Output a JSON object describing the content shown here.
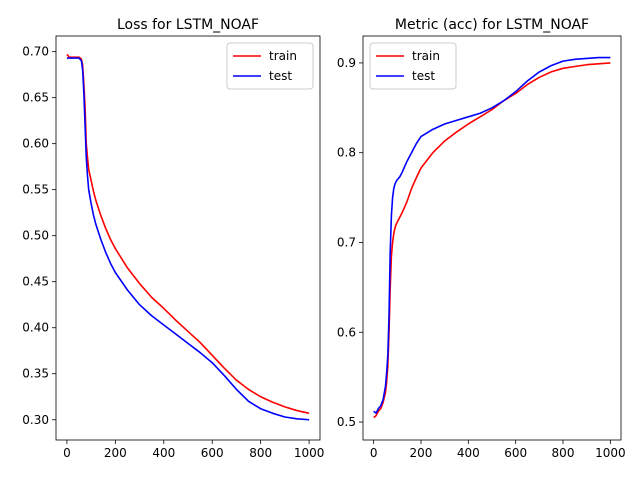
{
  "chart_data": [
    {
      "type": "line",
      "title": "Loss for LSTM_NOAF",
      "xlabel": "",
      "ylabel": "",
      "xlim": [
        -45,
        1045
      ],
      "ylim": [
        0.278,
        0.717
      ],
      "xticks": [
        0,
        200,
        400,
        600,
        800,
        1000
      ],
      "yticks": [
        0.3,
        0.35,
        0.4,
        0.45,
        0.5,
        0.55,
        0.6,
        0.65,
        0.7
      ],
      "ytick_labels": [
        "0.30",
        "0.35",
        "0.40",
        "0.45",
        "0.50",
        "0.55",
        "0.60",
        "0.65",
        "0.70"
      ],
      "grid": false,
      "legend": "upper-right",
      "series": [
        {
          "name": "train",
          "color": "#ff0000",
          "x": [
            0,
            10,
            30,
            50,
            60,
            65,
            70,
            75,
            80,
            85,
            90,
            100,
            110,
            120,
            140,
            160,
            180,
            200,
            250,
            300,
            350,
            400,
            450,
            500,
            550,
            600,
            650,
            700,
            750,
            800,
            850,
            900,
            950,
            1000
          ],
          "y": [
            0.697,
            0.694,
            0.694,
            0.694,
            0.692,
            0.685,
            0.665,
            0.64,
            0.6,
            0.585,
            0.572,
            0.56,
            0.548,
            0.538,
            0.522,
            0.508,
            0.496,
            0.486,
            0.465,
            0.448,
            0.433,
            0.421,
            0.408,
            0.396,
            0.384,
            0.37,
            0.356,
            0.343,
            0.333,
            0.325,
            0.319,
            0.314,
            0.31,
            0.307
          ]
        },
        {
          "name": "test",
          "color": "#0000ff",
          "x": [
            0,
            10,
            30,
            50,
            60,
            65,
            70,
            75,
            80,
            85,
            90,
            100,
            110,
            120,
            140,
            160,
            180,
            200,
            250,
            300,
            350,
            400,
            450,
            500,
            550,
            600,
            650,
            700,
            750,
            800,
            850,
            900,
            950,
            1000
          ],
          "y": [
            0.693,
            0.693,
            0.693,
            0.693,
            0.69,
            0.68,
            0.655,
            0.62,
            0.585,
            0.565,
            0.55,
            0.535,
            0.522,
            0.512,
            0.496,
            0.482,
            0.47,
            0.46,
            0.441,
            0.425,
            0.413,
            0.403,
            0.393,
            0.383,
            0.373,
            0.362,
            0.348,
            0.333,
            0.32,
            0.312,
            0.307,
            0.303,
            0.301,
            0.3
          ]
        }
      ]
    },
    {
      "type": "line",
      "title": "Metric (acc) for LSTM_NOAF",
      "xlabel": "",
      "ylabel": "",
      "xlim": [
        -45,
        1045
      ],
      "ylim": [
        0.48,
        0.93
      ],
      "xticks": [
        0,
        200,
        400,
        600,
        800,
        1000
      ],
      "yticks": [
        0.5,
        0.6,
        0.7,
        0.8,
        0.9
      ],
      "ytick_labels": [
        "0.5",
        "0.6",
        "0.7",
        "0.8",
        "0.9"
      ],
      "grid": false,
      "legend": "upper-left",
      "series": [
        {
          "name": "train",
          "color": "#ff0000",
          "x": [
            0,
            10,
            20,
            30,
            40,
            50,
            55,
            60,
            65,
            70,
            75,
            80,
            85,
            90,
            95,
            100,
            110,
            120,
            140,
            160,
            180,
            200,
            250,
            300,
            350,
            400,
            450,
            500,
            550,
            600,
            650,
            700,
            750,
            800,
            850,
            900,
            950,
            1000
          ],
          "y": [
            0.505,
            0.507,
            0.512,
            0.515,
            0.522,
            0.533,
            0.545,
            0.563,
            0.6,
            0.65,
            0.685,
            0.7,
            0.71,
            0.716,
            0.72,
            0.723,
            0.728,
            0.733,
            0.745,
            0.76,
            0.772,
            0.783,
            0.8,
            0.813,
            0.823,
            0.832,
            0.84,
            0.848,
            0.858,
            0.866,
            0.876,
            0.884,
            0.89,
            0.894,
            0.896,
            0.898,
            0.899,
            0.9
          ]
        },
        {
          "name": "test",
          "color": "#0000ff",
          "x": [
            0,
            10,
            20,
            30,
            40,
            50,
            55,
            60,
            65,
            70,
            75,
            80,
            85,
            90,
            95,
            100,
            110,
            120,
            140,
            160,
            180,
            200,
            250,
            300,
            350,
            400,
            450,
            500,
            550,
            600,
            650,
            700,
            750,
            800,
            850,
            900,
            950,
            1000
          ],
          "y": [
            0.512,
            0.51,
            0.515,
            0.518,
            0.525,
            0.54,
            0.555,
            0.575,
            0.62,
            0.69,
            0.73,
            0.75,
            0.76,
            0.765,
            0.768,
            0.77,
            0.773,
            0.778,
            0.79,
            0.8,
            0.81,
            0.818,
            0.826,
            0.832,
            0.836,
            0.84,
            0.844,
            0.85,
            0.858,
            0.868,
            0.88,
            0.89,
            0.897,
            0.902,
            0.904,
            0.905,
            0.906,
            0.906
          ]
        }
      ]
    }
  ]
}
